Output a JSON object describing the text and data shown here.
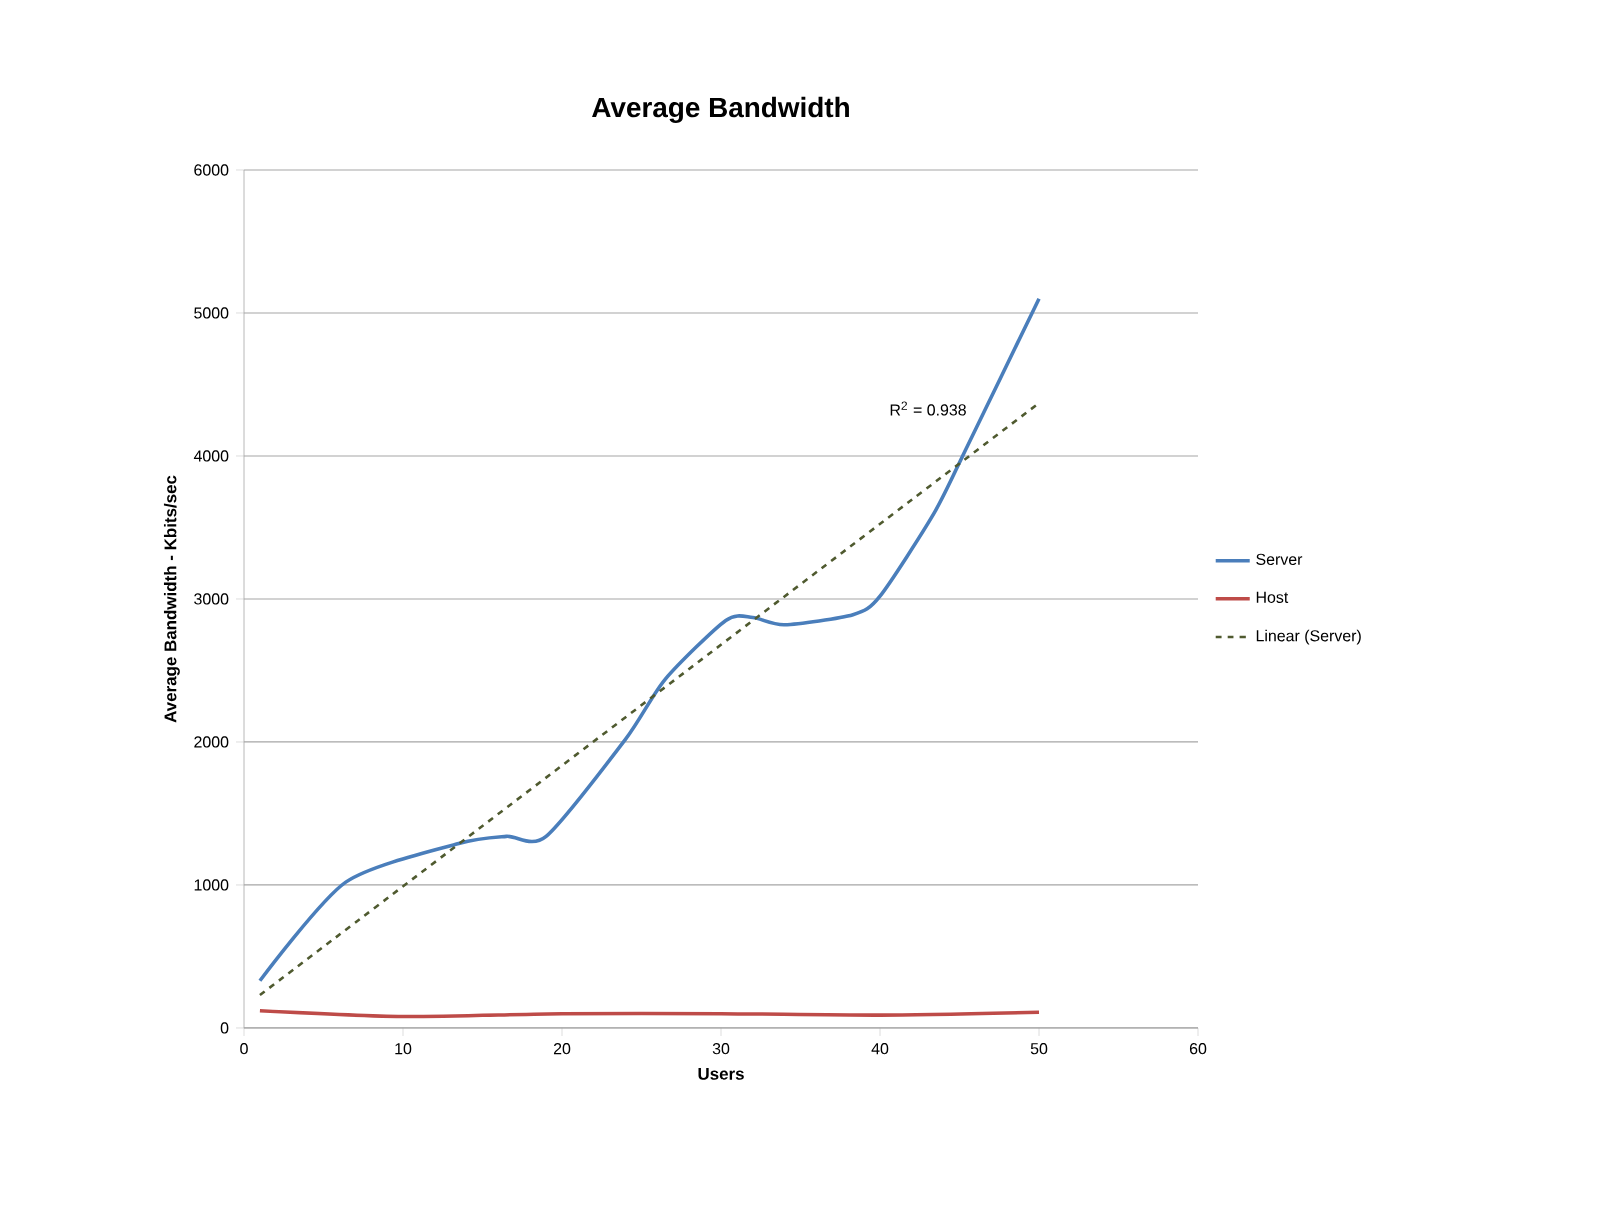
{
  "chart_data": {
    "type": "line",
    "title": "Average Bandwidth",
    "xlabel": "Users",
    "ylabel": "Average Bandwidth  - Kbits/sec",
    "xlim": [
      0,
      60
    ],
    "ylim": [
      0,
      6000
    ],
    "xticks": [
      0,
      10,
      20,
      30,
      40,
      50,
      60
    ],
    "yticks": [
      0,
      1000,
      2000,
      3000,
      4000,
      5000,
      6000
    ],
    "grid": "y",
    "legend": "right",
    "series": [
      {
        "name": "Server",
        "color": "#4a7ebb",
        "line_style": "solid",
        "x": [
          1,
          6.4,
          13.5,
          16.5,
          19,
          24,
          26.5,
          30.3,
          32,
          34,
          38.3,
          40,
          43.4,
          45.5,
          50
        ],
        "values": [
          330,
          1020,
          1290,
          1340,
          1340,
          2020,
          2440,
          2850,
          2870,
          2820,
          2890,
          3020,
          3600,
          4070,
          5100
        ]
      },
      {
        "name": "Host",
        "color": "#be4b48",
        "line_style": "solid",
        "x": [
          1,
          10,
          20,
          30,
          40,
          50
        ],
        "values": [
          120,
          80,
          100,
          100,
          90,
          110
        ]
      },
      {
        "name": "Linear (Server)",
        "color": "#4f5a2f",
        "line_style": "dashed",
        "x": [
          1,
          50
        ],
        "values": [
          230,
          4370
        ]
      }
    ],
    "annotations": [
      "R$^{2}$ = 0.938"
    ]
  }
}
